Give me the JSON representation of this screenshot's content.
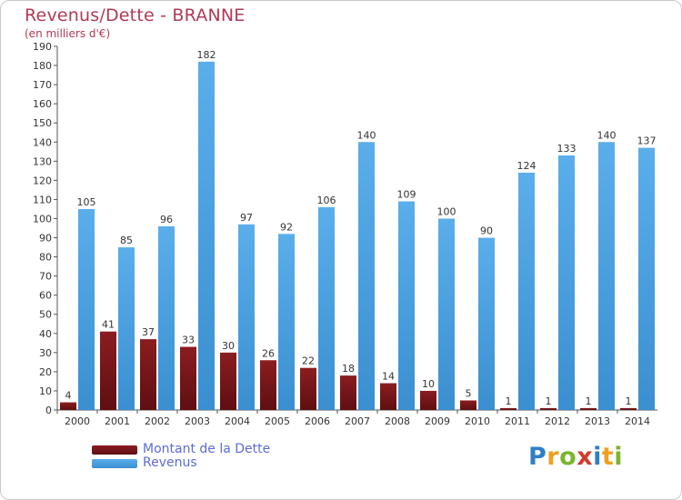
{
  "title": "Revenus/Dette - BRANNE",
  "subtitle": "(en milliers d'€)",
  "brand": {
    "logo_letters": [
      "P",
      "r",
      "o",
      "x",
      "i",
      "t",
      "i"
    ],
    "logo_colors": [
      "#2f7fc8",
      "#f0a020",
      "#7ab52e",
      "#d23c2c",
      "#2f7fc8",
      "#f0a020",
      "#7ab52e"
    ]
  },
  "colors": {
    "debt": "#7a1518",
    "revenue": "#4a9fe0",
    "title": "#b03a55",
    "legend_text": "#5c6bd6"
  },
  "chart_data": {
    "type": "bar",
    "title": "Revenus/Dette - BRANNE",
    "subtitle": "(en milliers d'€)",
    "categories": [
      "2000",
      "2001",
      "2002",
      "2003",
      "2004",
      "2005",
      "2006",
      "2007",
      "2008",
      "2009",
      "2010",
      "2011",
      "2012",
      "2013",
      "2014"
    ],
    "series": [
      {
        "name": "Montant de la Dette",
        "color": "#7a1518",
        "values": [
          4,
          41,
          37,
          33,
          30,
          26,
          22,
          18,
          14,
          10,
          5,
          1,
          1,
          1,
          1
        ]
      },
      {
        "name": "Revenus",
        "color": "#4a9fe0",
        "values": [
          105,
          85,
          96,
          182,
          97,
          92,
          106,
          140,
          109,
          100,
          90,
          124,
          133,
          140,
          137
        ]
      }
    ],
    "ylim": [
      0,
      190
    ],
    "yticks": [
      0,
      10,
      20,
      30,
      40,
      50,
      60,
      70,
      80,
      90,
      100,
      110,
      120,
      130,
      140,
      150,
      160,
      170,
      180,
      190
    ],
    "grid": false,
    "legend": "bottom-left",
    "xlabel": "",
    "ylabel": ""
  }
}
